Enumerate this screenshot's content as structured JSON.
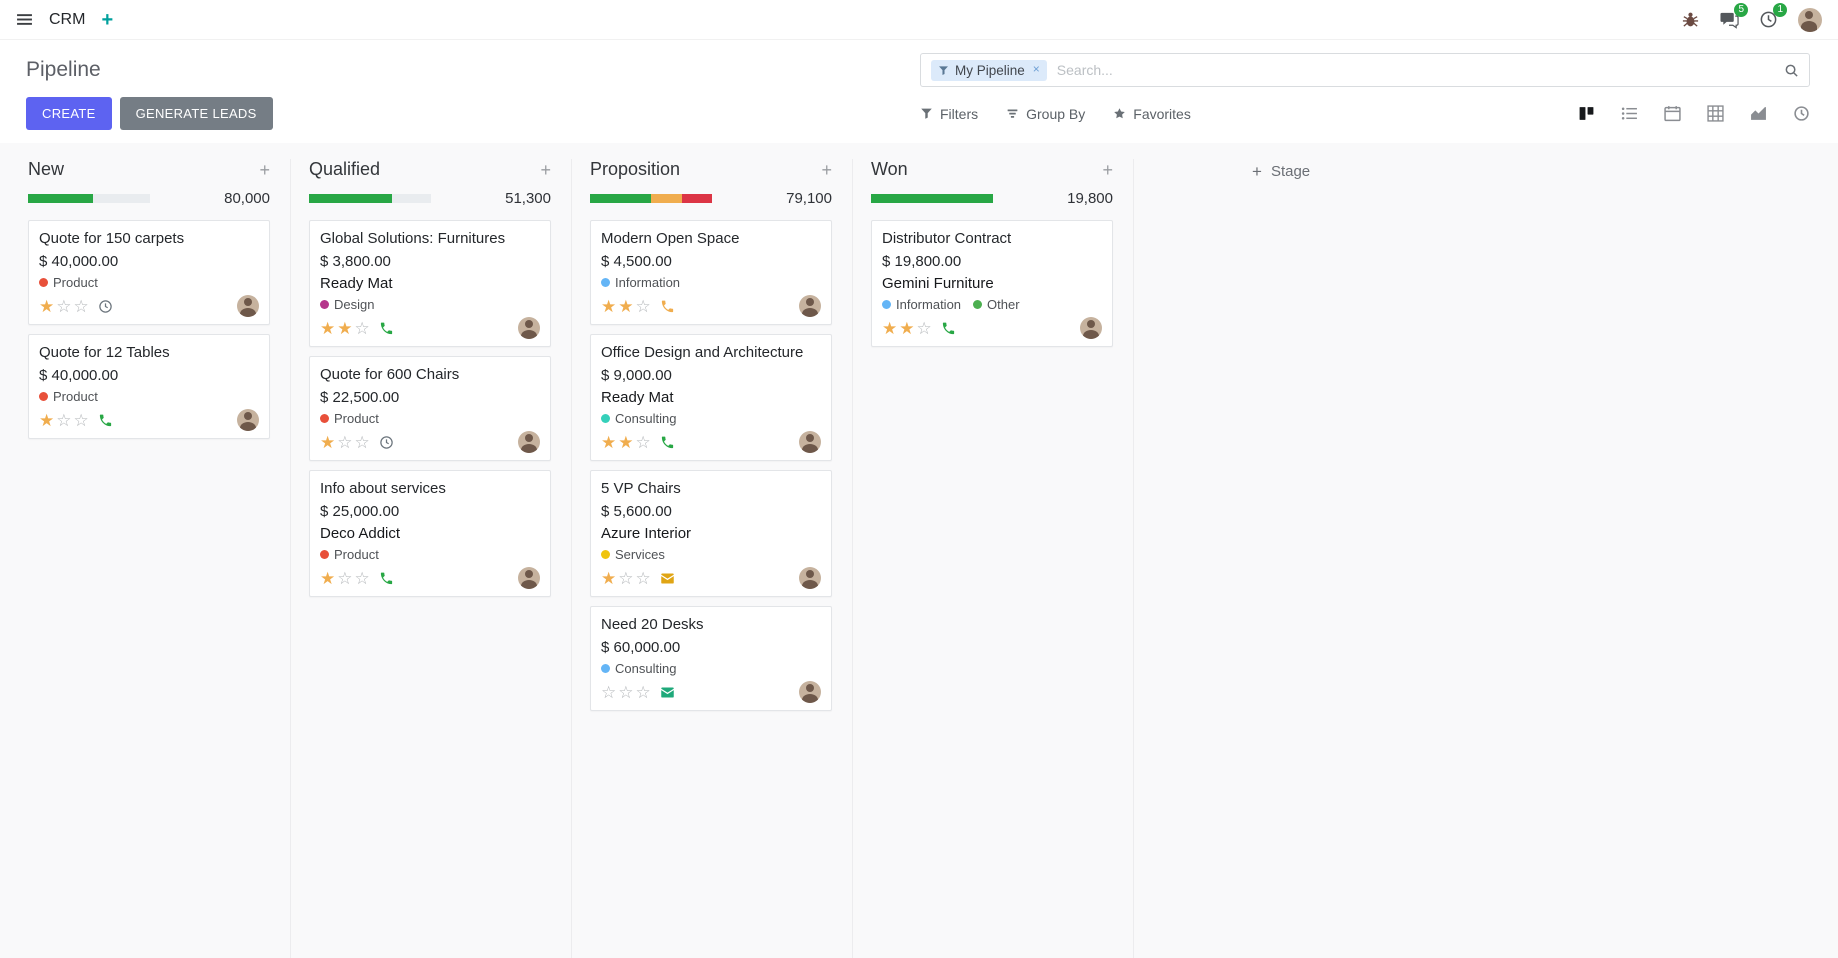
{
  "colors": {
    "primary": "#5d63f1",
    "secondary": "#757d85",
    "navbar_plus": "#00a09d",
    "badge": "#28a745",
    "star_filled": "#f0ad4e"
  },
  "navbar": {
    "app_name": "CRM",
    "messages_badge": "5",
    "activities_badge": "1"
  },
  "control_panel": {
    "title": "Pipeline",
    "create_label": "CREATE",
    "generate_leads_label": "GENERATE LEADS",
    "filters_label": "Filters",
    "group_by_label": "Group By",
    "favorites_label": "Favorites",
    "search": {
      "facet_label": "My Pipeline",
      "placeholder": "Search..."
    }
  },
  "board": {
    "add_stage_label": "Stage",
    "columns": [
      {
        "name": "New",
        "total": "80,000",
        "progress": [
          {
            "color": "#28a745",
            "pct": 53
          },
          {
            "color": "#e9ecef",
            "pct": 47
          }
        ],
        "cards": [
          {
            "title": "Quote for 150 carpets",
            "amount": "$ 40,000.00",
            "tags": [
              {
                "label": "Product",
                "color": "#e8503a"
              }
            ],
            "stars": 1,
            "activity": {
              "icon": "clock",
              "color": "#6c757d"
            }
          },
          {
            "title": "Quote for 12 Tables",
            "amount": "$ 40,000.00",
            "tags": [
              {
                "label": "Product",
                "color": "#e8503a"
              }
            ],
            "stars": 1,
            "activity": {
              "icon": "phone",
              "color": "#28a745"
            }
          }
        ]
      },
      {
        "name": "Qualified",
        "total": "51,300",
        "progress": [
          {
            "color": "#28a745",
            "pct": 68
          },
          {
            "color": "#e9ecef",
            "pct": 32
          }
        ],
        "cards": [
          {
            "title": "Global Solutions: Furnitures",
            "amount": "$ 3,800.00",
            "partner": "Ready Mat",
            "tags": [
              {
                "label": "Design",
                "color": "#b5368b"
              }
            ],
            "stars": 2,
            "activity": {
              "icon": "phone",
              "color": "#28a745"
            }
          },
          {
            "title": "Quote for 600 Chairs",
            "amount": "$ 22,500.00",
            "tags": [
              {
                "label": "Product",
                "color": "#e8503a"
              }
            ],
            "stars": 1,
            "activity": {
              "icon": "clock",
              "color": "#6c757d"
            }
          },
          {
            "title": "Info about services",
            "amount": "$ 25,000.00",
            "partner": "Deco Addict",
            "tags": [
              {
                "label": "Product",
                "color": "#e8503a"
              }
            ],
            "stars": 1,
            "activity": {
              "icon": "phone",
              "color": "#28a745"
            }
          }
        ]
      },
      {
        "name": "Proposition",
        "total": "79,100",
        "progress": [
          {
            "color": "#28a745",
            "pct": 50
          },
          {
            "color": "#f0ad4e",
            "pct": 25
          },
          {
            "color": "#dc3545",
            "pct": 25
          }
        ],
        "cards": [
          {
            "title": "Modern Open Space",
            "amount": "$ 4,500.00",
            "tags": [
              {
                "label": "Information",
                "color": "#64b5f6"
              }
            ],
            "stars": 2,
            "activity": {
              "icon": "phone",
              "color": "#f0ad4e"
            }
          },
          {
            "title": "Office Design and Architecture",
            "amount": "$ 9,000.00",
            "partner": "Ready Mat",
            "tags": [
              {
                "label": "Consulting",
                "color": "#35d0ba"
              }
            ],
            "stars": 2,
            "activity": {
              "icon": "phone",
              "color": "#28a745"
            }
          },
          {
            "title": "5 VP Chairs",
            "amount": "$ 5,600.00",
            "partner": "Azure Interior",
            "tags": [
              {
                "label": "Services",
                "color": "#f0c40f"
              }
            ],
            "stars": 1,
            "activity": {
              "icon": "envelope",
              "color": "#e0a514"
            }
          },
          {
            "title": "Need 20 Desks",
            "amount": "$ 60,000.00",
            "tags": [
              {
                "label": "Consulting",
                "color": "#64b5f6"
              }
            ],
            "stars": 0,
            "activity": {
              "icon": "envelope",
              "color": "#1fa97a"
            }
          }
        ]
      },
      {
        "name": "Won",
        "total": "19,800",
        "progress": [
          {
            "color": "#28a745",
            "pct": 100
          }
        ],
        "cards": [
          {
            "title": "Distributor Contract",
            "amount": "$ 19,800.00",
            "partner": "Gemini Furniture",
            "tags": [
              {
                "label": "Information",
                "color": "#64b5f6"
              },
              {
                "label": "Other",
                "color": "#4caf50"
              }
            ],
            "stars": 2,
            "activity": {
              "icon": "phone",
              "color": "#28a745"
            }
          }
        ]
      }
    ]
  }
}
